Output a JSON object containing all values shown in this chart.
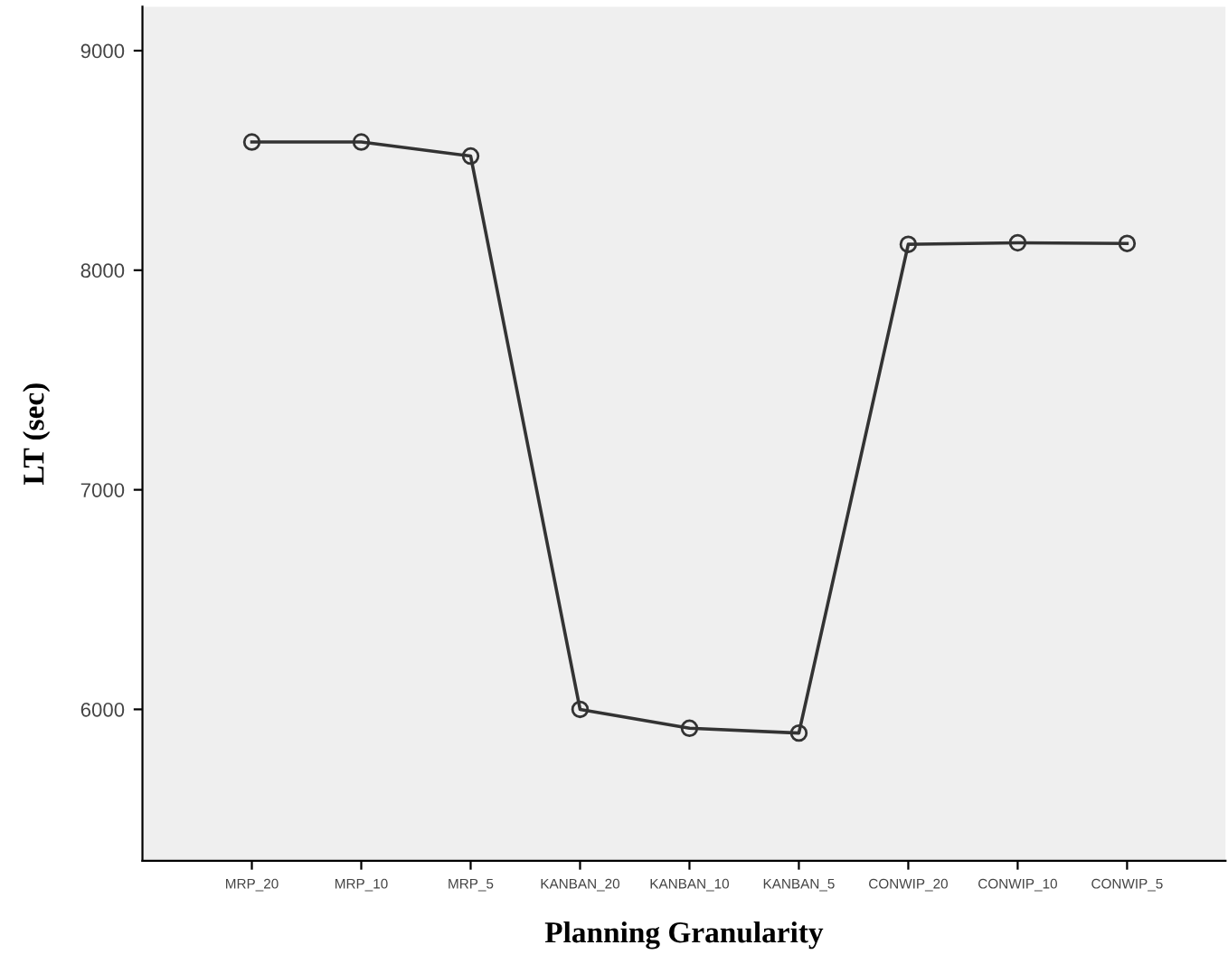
{
  "chart_data": {
    "type": "line",
    "xlabel": "Planning Granularity",
    "ylabel": "LT (sec)",
    "categories": [
      "MRP_20",
      "MRP_10",
      "MRP_5",
      "KANBAN_20",
      "KANBAN_10",
      "KANBAN_5",
      "CONWIP_20",
      "CONWIP_10",
      "CONWIP_5"
    ],
    "series": [
      {
        "color": "#333333",
        "values": [
          8584,
          8584,
          8520,
          6000,
          5914,
          5892,
          8118,
          8125,
          8122
        ]
      }
    ],
    "ylim": [
      5310,
      9200
    ],
    "yticks": [
      6000,
      7000,
      8000,
      9000
    ],
    "marker": "circle",
    "line_style": "solid",
    "grid": false,
    "legend": false
  }
}
